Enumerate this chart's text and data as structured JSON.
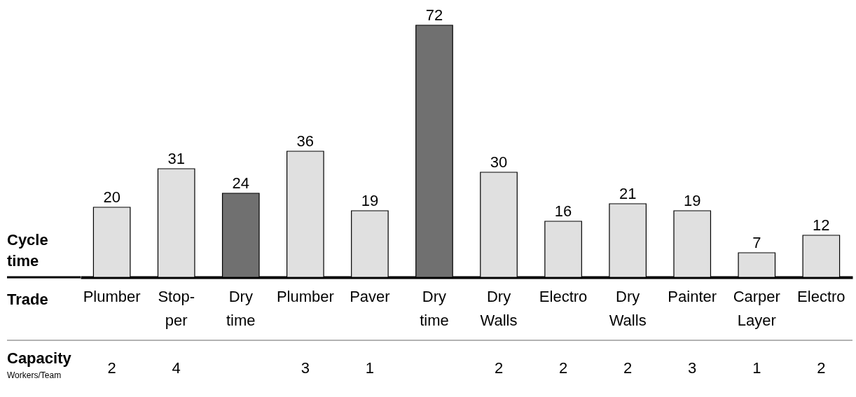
{
  "chart_data": {
    "type": "bar",
    "ylabel": "Cycle time",
    "xlabel": "Trade",
    "categories": [
      "Plumber",
      "Stop-\nper",
      "Dry\ntime",
      "Plumber",
      "Paver",
      "Dry\ntime",
      "Dry\nWalls",
      "Electro",
      "Dry\nWalls",
      "Painter",
      "Carper\nLayer",
      "Electro"
    ],
    "values": [
      20,
      31,
      24,
      36,
      19,
      72,
      30,
      16,
      21,
      19,
      7,
      12
    ],
    "colors": [
      "#e0e0e0",
      "#e0e0e0",
      "#707070",
      "#e0e0e0",
      "#e0e0e0",
      "#707070",
      "#e0e0e0",
      "#e0e0e0",
      "#e0e0e0",
      "#e0e0e0",
      "#e0e0e0",
      "#e0e0e0"
    ],
    "data_labels": true,
    "annotations": [
      "Capacity",
      "Workers/Team",
      "2",
      "4",
      "3",
      "1",
      "2",
      "2",
      "2",
      "3",
      "1",
      "2"
    ]
  }
}
